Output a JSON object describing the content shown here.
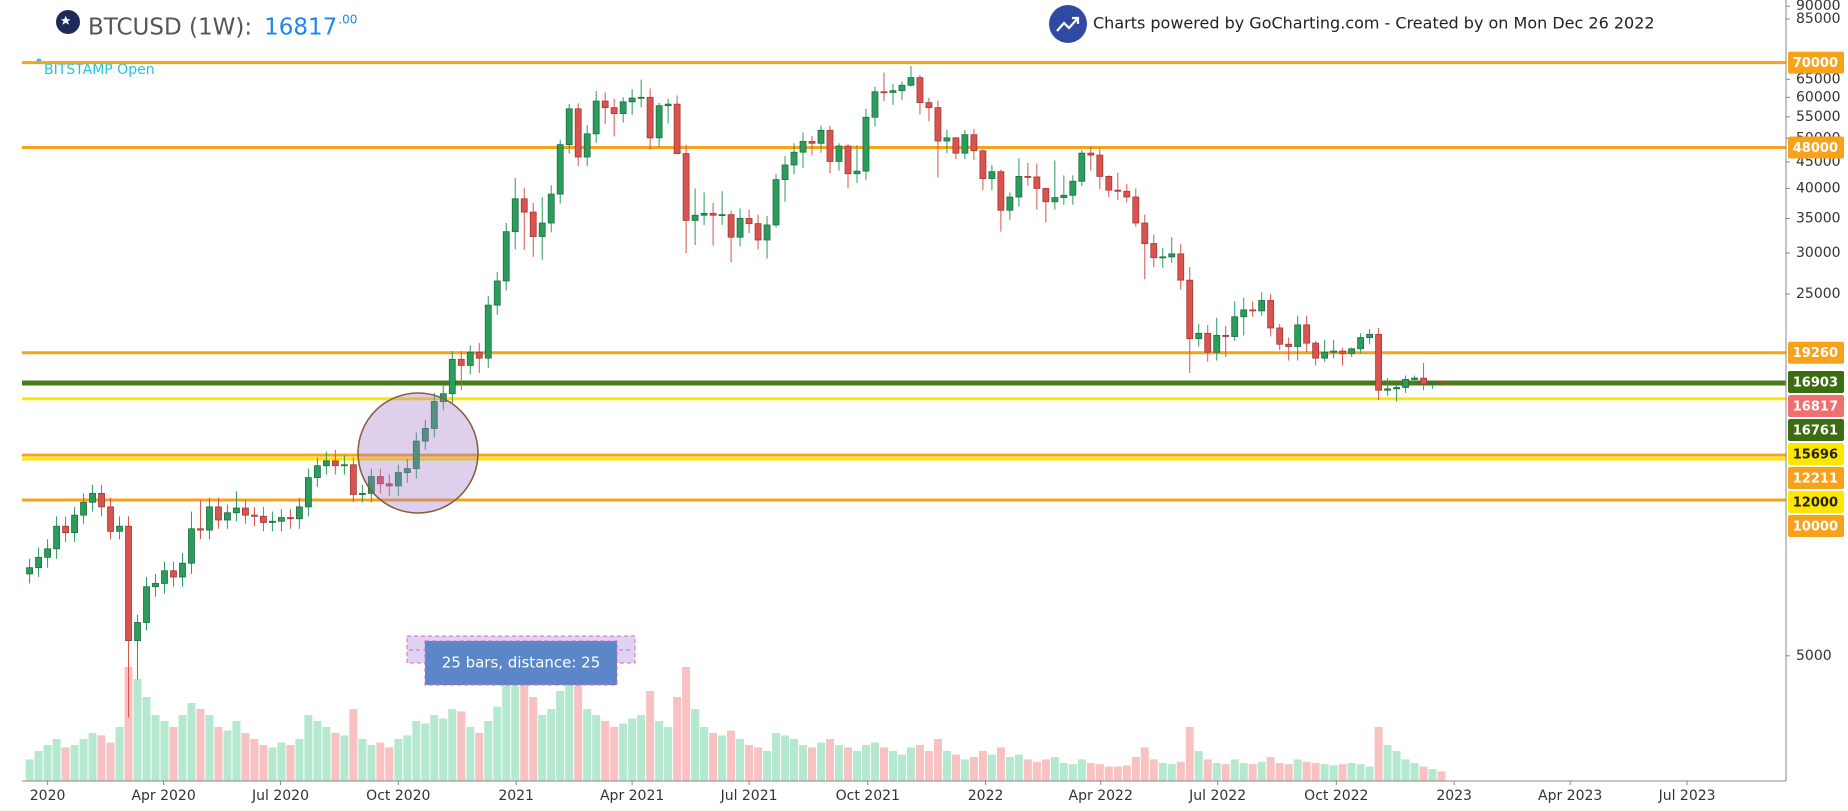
{
  "chart_data": {
    "type": "candlestick",
    "title": "BTCUSD (1W):",
    "price": 16817,
    "price_decimals": ".00",
    "exchange_label": "BITSTAMP Open",
    "credit": "Charts powered by GoCharting.com - Created by  on Mon Dec 26 2022",
    "measure_label": "25 bars,  distance: 25",
    "log_scale": true,
    "up_color": "#2a9d5c",
    "down_color": "#d9534f",
    "ylim": [
      2865,
      92500
    ],
    "yticks": [
      5000,
      25000,
      30000,
      35000,
      40000,
      45000,
      50000,
      55000,
      60000,
      65000,
      85000,
      90000
    ],
    "xlim": [
      -0.4,
      195.3
    ],
    "xticks": [
      {
        "value": 2,
        "label": "2020"
      },
      {
        "value": 14.9,
        "label": "Apr 2020"
      },
      {
        "value": 27.9,
        "label": "Jul 2020"
      },
      {
        "value": 41,
        "label": "Oct 2020"
      },
      {
        "value": 54.1,
        "label": "2021"
      },
      {
        "value": 67,
        "label": "Apr 2021"
      },
      {
        "value": 80,
        "label": "Jul 2021"
      },
      {
        "value": 93.2,
        "label": "Oct 2021"
      },
      {
        "value": 106.3,
        "label": "2022"
      },
      {
        "value": 119.1,
        "label": "Apr 2022"
      },
      {
        "value": 132.1,
        "label": "Jul 2022"
      },
      {
        "value": 145.3,
        "label": "Oct 2022"
      },
      {
        "value": 158.4,
        "label": "2023"
      },
      {
        "value": 171.3,
        "label": "Apr 2023"
      },
      {
        "value": 184.3,
        "label": "Jul 2023"
      }
    ],
    "levels": [
      {
        "value": 70000,
        "line_color": "#f7a21b",
        "tag_color": "#f7a21b",
        "text_color": "#ffffff"
      },
      {
        "value": 48000,
        "line_color": "#f7a21b",
        "tag_color": "#f7a21b",
        "text_color": "#ffffff"
      },
      {
        "value": 19260,
        "line_color": "#f7a21b",
        "tag_color": "#f7a21b",
        "text_color": "#ffffff"
      },
      {
        "value": 16903,
        "line_color": "#4a7a1a",
        "tag_color": "#3d6b11",
        "text_color": "#ffffff"
      },
      {
        "value": 16817,
        "line_color": "#4a7a1a",
        "tag_color": "#f07070",
        "text_color": "#ffffff"
      },
      {
        "value": 16761,
        "line_color": "#4a7a1a",
        "tag_color": "#3d6b11",
        "text_color": "#ffffff"
      },
      {
        "value": 15696,
        "line_color": "#ffe600",
        "tag_color": "#ffe600",
        "text_color": "#222222"
      },
      {
        "value": 12211,
        "line_color": "#f7a21b",
        "tag_color": "#f7a21b",
        "text_color": "#ffffff"
      },
      {
        "value": 12000,
        "line_color": "#ffe600",
        "tag_color": "#ffe600",
        "text_color": "#222222"
      },
      {
        "value": 10000,
        "line_color": "#f7a21b",
        "tag_color": "#f7a21b",
        "text_color": "#ffffff"
      }
    ],
    "open": [
      7200,
      7400,
      7750,
      8050,
      8900,
      8650,
      9350,
      9900,
      10300,
      9700,
      8700,
      8900,
      5350,
      5800,
      6800,
      6900,
      7300,
      7100,
      7550,
      8800,
      8750,
      9700,
      9150,
      9450,
      9650,
      9350,
      9300,
      9050,
      9100,
      9250,
      9200,
      9700,
      11050,
      11650,
      11900,
      11650,
      11700,
      10250,
      10300,
      11100,
      10750,
      10650,
      11300,
      11500,
      13000,
      13750,
      15500,
      16050,
      18700,
      18200,
      19300,
      18800,
      23800,
      26500,
      33000,
      38200,
      36000,
      32300,
      34300,
      39000,
      48600,
      57000,
      46000,
      51000,
      59000,
      57300,
      55800,
      58800,
      59800,
      60000,
      50100,
      57800,
      58200,
      46700,
      34700,
      35500,
      35800,
      35500,
      35600,
      32200,
      35000,
      34200,
      31800,
      34000,
      41600,
      44400,
      47000,
      49300,
      48900,
      51800,
      45100,
      48300,
      42700,
      43200,
      54900,
      61500,
      61300,
      61800,
      63300,
      65500,
      58600,
      57300,
      49400,
      50100,
      46800,
      50800,
      47300,
      41800,
      43100,
      36300,
      38500,
      42200,
      42100,
      40000,
      37700,
      38400,
      38800,
      41300,
      46800,
      46400,
      42200,
      39700,
      39500,
      38500,
      34300,
      31300,
      29400,
      29500,
      29900,
      26600,
      20500,
      21000,
      19300,
      20800,
      20700,
      22600,
      23300,
      23200,
      24300,
      21500,
      20000,
      19800,
      21800,
      20100,
      18800,
      19300,
      19400,
      19200,
      19600,
      20600,
      20900,
      16300,
      16400,
      16500,
      17100,
      17200,
      16750,
      16850
    ],
    "high": [
      7700,
      8100,
      8400,
      9300,
      9300,
      9700,
      10300,
      10700,
      10700,
      10100,
      9300,
      9300,
      6000,
      7100,
      7200,
      7600,
      7600,
      7900,
      9500,
      10000,
      10100,
      10100,
      9800,
      10400,
      10000,
      9700,
      9700,
      9500,
      9600,
      9600,
      10100,
      11500,
      12100,
      12400,
      12500,
      12200,
      12100,
      10700,
      11500,
      11500,
      11200,
      11700,
      12000,
      13500,
      14300,
      16100,
      16700,
      19400,
      19400,
      19900,
      20100,
      24800,
      27600,
      34300,
      41900,
      40100,
      37500,
      38500,
      40600,
      49700,
      58300,
      58400,
      53000,
      61700,
      61300,
      59600,
      60000,
      62200,
      64900,
      62400,
      58500,
      59600,
      60500,
      48600,
      40000,
      39300,
      37500,
      39500,
      36200,
      36600,
      36400,
      35600,
      35400,
      42600,
      46200,
      48900,
      51300,
      50500,
      52900,
      52900,
      48900,
      48700,
      48500,
      57000,
      62900,
      67000,
      63700,
      64300,
      69000,
      66300,
      59900,
      59100,
      51900,
      50300,
      51900,
      52100,
      47600,
      44400,
      43500,
      39300,
      45800,
      44800,
      44700,
      40100,
      45300,
      42400,
      42400,
      47500,
      48200,
      47700,
      42400,
      42900,
      40800,
      40000,
      35600,
      32600,
      30700,
      32200,
      31200,
      28200,
      21900,
      21800,
      22500,
      21700,
      24200,
      24600,
      24200,
      25200,
      25000,
      21900,
      20600,
      22700,
      22700,
      20300,
      20400,
      20400,
      19700,
      19700,
      21000,
      21400,
      21500,
      17200,
      16800,
      17400,
      17400,
      18400,
      17000,
      16900
    ],
    "low": [
      6900,
      7100,
      7400,
      7700,
      8300,
      8300,
      9000,
      9500,
      9300,
      8400,
      8400,
      3800,
      4500,
      5600,
      6500,
      6600,
      6800,
      6800,
      7200,
      8400,
      8400,
      8800,
      8800,
      9100,
      9000,
      8900,
      8700,
      8700,
      8700,
      8800,
      8800,
      9300,
      10600,
      11200,
      11200,
      11200,
      9900,
      9900,
      9900,
      10300,
      10200,
      10200,
      10800,
      11000,
      12500,
      13200,
      14900,
      15400,
      16300,
      17500,
      17600,
      18000,
      22800,
      25400,
      30500,
      30400,
      29500,
      29100,
      32900,
      37400,
      46700,
      44200,
      44200,
      49000,
      53300,
      50400,
      53600,
      55500,
      57400,
      47500,
      48100,
      53400,
      46600,
      30000,
      31100,
      34000,
      31000,
      34000,
      28800,
      30900,
      32800,
      30500,
      29300,
      33600,
      37700,
      42600,
      43800,
      46400,
      46900,
      42800,
      43300,
      40000,
      41000,
      41500,
      52700,
      59000,
      58000,
      59300,
      62900,
      55600,
      53900,
      42000,
      46800,
      45600,
      45600,
      45400,
      39700,
      39700,
      33000,
      34800,
      36900,
      40500,
      36400,
      34400,
      36400,
      37200,
      37200,
      40400,
      43300,
      39900,
      38500,
      38000,
      37600,
      33700,
      26700,
      28200,
      28100,
      28700,
      25500,
      17600,
      19800,
      18500,
      18600,
      18900,
      20300,
      20800,
      22600,
      22700,
      20700,
      19500,
      18600,
      18600,
      19300,
      18200,
      18500,
      18800,
      18200,
      18900,
      19200,
      20000,
      15600,
      15900,
      15500,
      16100,
      16800,
      16300,
      16400,
      16600
    ],
    "close": [
      7400,
      7750,
      8050,
      8900,
      8650,
      9350,
      9900,
      10300,
      9700,
      8700,
      8900,
      5350,
      5800,
      6800,
      6900,
      7300,
      7100,
      7550,
      8800,
      8750,
      9700,
      9150,
      9450,
      9650,
      9350,
      9300,
      9050,
      9100,
      9250,
      9200,
      9700,
      11050,
      11650,
      11900,
      11650,
      11700,
      10250,
      10300,
      11100,
      10750,
      10650,
      11300,
      11500,
      13000,
      13750,
      15500,
      16050,
      18700,
      18200,
      19300,
      18800,
      23800,
      26500,
      33000,
      38200,
      36000,
      32300,
      34300,
      39000,
      48600,
      57000,
      46000,
      51000,
      59000,
      57300,
      55800,
      58800,
      59800,
      60000,
      50100,
      57800,
      58200,
      46700,
      34700,
      35500,
      35800,
      35500,
      35600,
      32200,
      35000,
      34200,
      31800,
      34000,
      41600,
      44400,
      47000,
      49300,
      48900,
      51800,
      45100,
      48300,
      42700,
      43200,
      54900,
      61500,
      61300,
      61800,
      63300,
      65500,
      58600,
      57300,
      49400,
      50100,
      46800,
      50800,
      47300,
      41800,
      43100,
      36300,
      38500,
      42200,
      42100,
      40000,
      37700,
      38400,
      38800,
      41300,
      46800,
      46400,
      42200,
      39700,
      39500,
      38500,
      34300,
      31300,
      29400,
      29500,
      29900,
      26600,
      20500,
      21000,
      19300,
      20800,
      20700,
      22600,
      23300,
      23200,
      24300,
      21500,
      20000,
      19800,
      21800,
      20100,
      18800,
      19300,
      19400,
      19200,
      19600,
      20600,
      20900,
      16300,
      16400,
      16500,
      17100,
      17200,
      16750,
      16850,
      16817
    ],
    "volume": [
      18,
      25,
      30,
      35,
      28,
      30,
      35,
      40,
      38,
      32,
      45,
      95,
      85,
      70,
      55,
      50,
      45,
      55,
      65,
      60,
      55,
      45,
      42,
      50,
      40,
      35,
      30,
      28,
      32,
      30,
      35,
      55,
      50,
      45,
      40,
      38,
      60,
      35,
      30,
      32,
      28,
      35,
      38,
      50,
      48,
      55,
      52,
      60,
      58,
      45,
      40,
      50,
      62,
      80,
      100,
      85,
      70,
      55,
      60,
      75,
      90,
      80,
      60,
      55,
      50,
      45,
      48,
      52,
      55,
      75,
      50,
      45,
      70,
      95,
      60,
      45,
      40,
      38,
      42,
      35,
      30,
      28,
      25,
      40,
      38,
      35,
      30,
      28,
      32,
      35,
      30,
      28,
      25,
      30,
      32,
      28,
      25,
      22,
      28,
      30,
      25,
      35,
      25,
      22,
      18,
      20,
      25,
      22,
      28,
      20,
      22,
      18,
      16,
      18,
      20,
      15,
      14,
      18,
      15,
      14,
      12,
      12,
      13,
      20,
      28,
      18,
      15,
      14,
      16,
      45,
      25,
      18,
      15,
      14,
      18,
      15,
      14,
      16,
      20,
      15,
      14,
      18,
      16,
      15,
      14,
      13,
      14,
      15,
      14,
      12,
      45,
      30,
      25,
      18,
      15,
      12,
      10,
      8
    ]
  }
}
